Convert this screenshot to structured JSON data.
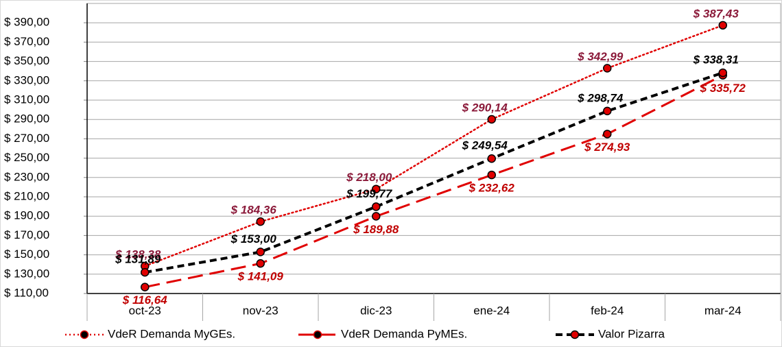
{
  "chart_data": {
    "type": "line",
    "categories": [
      "oct-23",
      "nov-23",
      "dic-23",
      "ene-24",
      "feb-24",
      "mar-24"
    ],
    "ylim": [
      110,
      410
    ],
    "yticks": [
      {
        "value": 110,
        "label": "$ 110,00"
      },
      {
        "value": 130,
        "label": "$ 130,00"
      },
      {
        "value": 150,
        "label": "$ 150,00"
      },
      {
        "value": 170,
        "label": "$ 170,00"
      },
      {
        "value": 190,
        "label": "$ 190,00"
      },
      {
        "value": 210,
        "label": "$ 210,00"
      },
      {
        "value": 230,
        "label": "$ 230,00"
      },
      {
        "value": 250,
        "label": "$ 250,00"
      },
      {
        "value": 270,
        "label": "$ 270,00"
      },
      {
        "value": 290,
        "label": "$ 290,00"
      },
      {
        "value": 310,
        "label": "$ 310,00"
      },
      {
        "value": 330,
        "label": "$ 330,00"
      },
      {
        "value": 350,
        "label": "$ 350,00"
      },
      {
        "value": 370,
        "label": "$ 370,00"
      },
      {
        "value": 390,
        "label": "$ 390,00"
      }
    ],
    "grid": true,
    "legend": "bottom",
    "series": [
      {
        "name": "VdeR Demanda MyGEs.",
        "color": "#e00000",
        "label_color": "#8b1a3a",
        "dash": "dotted",
        "values": [
          138.38,
          184.36,
          218.0,
          290.14,
          342.99,
          387.43
        ],
        "value_labels": [
          "$ 138,38",
          "$ 184,36",
          "$ 218,00",
          "$ 290,14",
          "$ 342,99",
          "$ 387,43"
        ]
      },
      {
        "name": "VdeR Demanda PyMEs.",
        "color": "#e00000",
        "label_color": "#c00000",
        "dash": "long",
        "values": [
          116.64,
          141.09,
          189.88,
          232.62,
          274.93,
          335.72
        ],
        "value_labels": [
          "$ 116,64",
          "$ 141,09",
          "$ 189,88",
          "$ 232,62",
          "$ 274,93",
          "$ 335,72"
        ]
      },
      {
        "name": "Valor Pizarra",
        "color": "#000000",
        "label_color": "#000000",
        "dash": "short",
        "values": [
          131.89,
          153.0,
          199.77,
          249.54,
          298.74,
          338.31
        ],
        "value_labels": [
          "$ 131,89",
          "$ 153,00",
          "$ 199,77",
          "$ 249,54",
          "$ 298,74",
          "$ 338,31"
        ]
      }
    ]
  }
}
